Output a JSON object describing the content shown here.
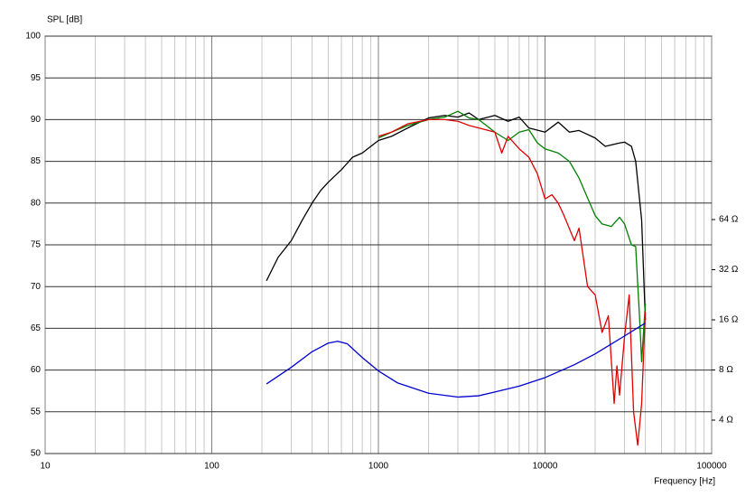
{
  "chart_data": {
    "type": "line",
    "y_label": "SPL [dB]",
    "x_label": "Frequency [Hz]",
    "xscale": "log",
    "y2scale": "log",
    "grid": true,
    "xlim": [
      10,
      100000
    ],
    "xticks": [
      10,
      100,
      1000,
      10000,
      100000
    ],
    "ylim": [
      50,
      100
    ],
    "yticks": [
      50,
      55,
      60,
      65,
      70,
      75,
      80,
      85,
      90,
      95,
      100
    ],
    "y2lim": [
      2.52,
      808
    ],
    "y2ticks": [
      {
        "value": 4,
        "label": "4 Ω"
      },
      {
        "value": 8,
        "label": "8 Ω"
      },
      {
        "value": 16,
        "label": "16 Ω"
      },
      {
        "value": 32,
        "label": "32 Ω"
      },
      {
        "value": 64,
        "label": "64 Ω"
      }
    ],
    "series": [
      {
        "color": "#000000",
        "x": [
          213,
          250,
          300,
          350,
          400,
          450,
          500,
          600,
          700,
          800,
          1000,
          1200,
          1500,
          2000,
          2500,
          3000,
          3500,
          4000,
          5000,
          6000,
          7000,
          8000,
          10000,
          12000,
          14000,
          16000,
          20000,
          23000,
          28000,
          30000,
          33000,
          35000,
          38000,
          40000
        ],
        "values": [
          70.7,
          73.5,
          75.5,
          78,
          80,
          81.5,
          82.5,
          84,
          85.5,
          86,
          87.5,
          88,
          89,
          90.2,
          90.5,
          90.3,
          90.8,
          90,
          90.5,
          89.8,
          90.3,
          89,
          88.5,
          89.7,
          88.5,
          88.7,
          87.8,
          86.8,
          87.2,
          87.3,
          86.8,
          85,
          78,
          66
        ]
      },
      {
        "color": "#008000",
        "x": [
          1000,
          1200,
          1500,
          2000,
          2500,
          3000,
          3500,
          4000,
          5000,
          6000,
          7000,
          8000,
          9000,
          10000,
          12000,
          14000,
          16000,
          20000,
          22000,
          25000,
          28000,
          30000,
          33000,
          35000,
          37000,
          38000,
          40000
        ],
        "values": [
          87.8,
          88.5,
          89.3,
          90,
          90.3,
          91,
          90.2,
          90,
          88.5,
          87.5,
          88.5,
          88.8,
          87.2,
          86.5,
          86,
          85,
          83,
          78.5,
          77.5,
          77.2,
          78.3,
          77.5,
          75,
          74.8,
          66,
          61,
          68
        ]
      },
      {
        "color": "#e00000",
        "x": [
          1000,
          1200,
          1500,
          2000,
          2500,
          3000,
          3500,
          4000,
          5000,
          5500,
          6000,
          7000,
          8000,
          9000,
          10000,
          11000,
          12000,
          13000,
          15000,
          16000,
          18000,
          20000,
          22000,
          24000,
          26000,
          27000,
          28000,
          30000,
          32000,
          34000,
          36000,
          38000,
          40000
        ],
        "values": [
          88,
          88.5,
          89.5,
          90,
          90,
          89.8,
          89.3,
          89,
          88.5,
          86,
          88,
          86.5,
          85.5,
          83.5,
          80.5,
          81,
          80,
          78.5,
          75.5,
          77,
          70,
          69,
          64.5,
          66.5,
          56,
          60.5,
          57,
          64,
          69,
          55,
          51,
          56,
          67
        ]
      },
      {
        "color": "#0000d0",
        "axis": "y2",
        "x": [
          213,
          300,
          400,
          500,
          570,
          650,
          800,
          1000,
          1300,
          2000,
          3000,
          4000,
          5000,
          7000,
          10000,
          15000,
          20000,
          30000,
          40000
        ],
        "values": [
          6.6,
          8.3,
          10.3,
          11.6,
          11.9,
          11.5,
          9.5,
          7.9,
          6.7,
          5.8,
          5.5,
          5.6,
          5.9,
          6.4,
          7.2,
          8.6,
          10,
          12.8,
          15.3
        ]
      }
    ]
  }
}
